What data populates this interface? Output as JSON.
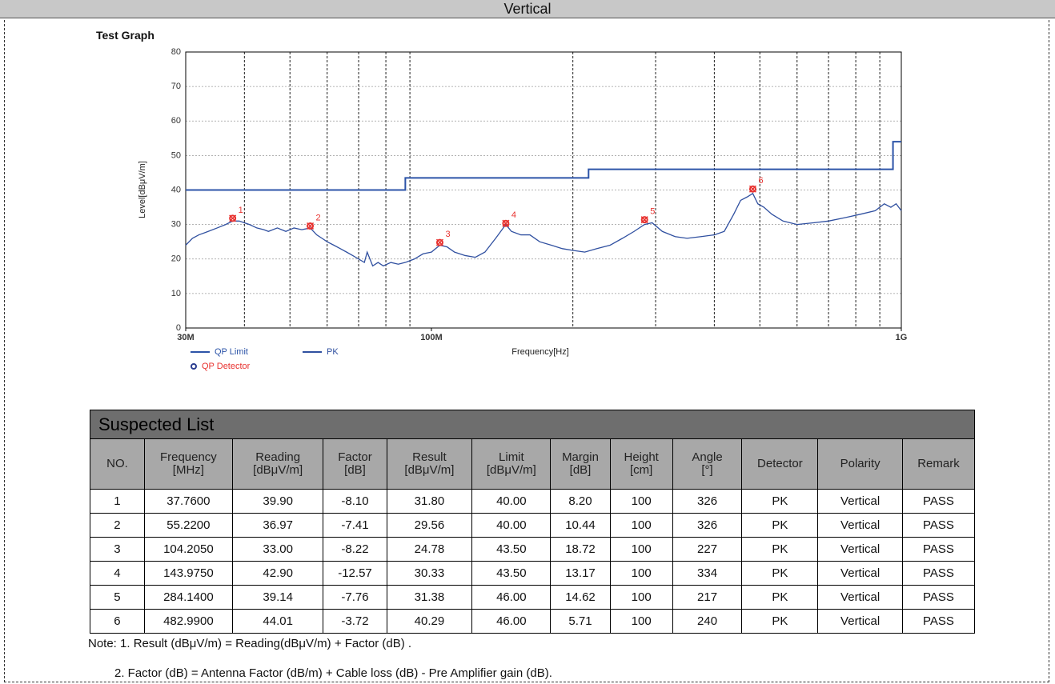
{
  "header": {
    "title": "Vertical"
  },
  "section_title": "Test Graph",
  "chart_data": {
    "type": "line",
    "xlabel": "Frequency[Hz]",
    "ylabel": "Level[dBμV/m]",
    "xscale": "log",
    "xlim": [
      30000000,
      1000000000
    ],
    "ylim": [
      0,
      80
    ],
    "xticks": [
      {
        "value": 30000000,
        "label": "30M"
      },
      {
        "value": 100000000,
        "label": "100M"
      },
      {
        "value": 1000000000,
        "label": "1G"
      }
    ],
    "x_minor_ticks": [
      40000000,
      50000000,
      60000000,
      70000000,
      80000000,
      90000000,
      200000000,
      300000000,
      400000000,
      500000000,
      600000000,
      700000000,
      800000000,
      900000000
    ],
    "yticks": [
      0,
      10,
      20,
      30,
      40,
      50,
      60,
      70,
      80
    ],
    "grid": true,
    "series": [
      {
        "name": "QP Limit",
        "color": "#2c54a8",
        "x": [
          30000000,
          88000000,
          88000000,
          216000000,
          216000000,
          960000000,
          960000000,
          1000000000
        ],
        "values": [
          40,
          40,
          43.5,
          43.5,
          46,
          46,
          54,
          54
        ]
      },
      {
        "name": "PK",
        "color": "#3050a0",
        "x": [
          30000000,
          31000000,
          32000000,
          33500000,
          35000000,
          36500000,
          37760000,
          39000000,
          40000000,
          41000000,
          42500000,
          44000000,
          45000000,
          47000000,
          49000000,
          51000000,
          53000000,
          55220000,
          57000000,
          58500000,
          60000000,
          62000000,
          64000000,
          66000000,
          68000000,
          70000000,
          72000000,
          73000000,
          75000000,
          77000000,
          79000000,
          82000000,
          85000000,
          88000000,
          92000000,
          96000000,
          100000000,
          104200000,
          108000000,
          112000000,
          118000000,
          124000000,
          130000000,
          137000000,
          143975000,
          148000000,
          155000000,
          162000000,
          170000000,
          180000000,
          190000000,
          200000000,
          212000000,
          225000000,
          240000000,
          255000000,
          270000000,
          284140000,
          295000000,
          310000000,
          330000000,
          350000000,
          375000000,
          400000000,
          420000000,
          440000000,
          455000000,
          470000000,
          482990000,
          495000000,
          510000000,
          530000000,
          560000000,
          600000000,
          650000000,
          700000000,
          760000000,
          820000000,
          880000000,
          920000000,
          950000000,
          975000000,
          1000000000
        ],
        "values": [
          24,
          26,
          27,
          28,
          29,
          30,
          31,
          31,
          30.5,
          30,
          29,
          28.5,
          28,
          29,
          28,
          29,
          28.5,
          29,
          27,
          26,
          25,
          24,
          23,
          22,
          21,
          20,
          19,
          22,
          18,
          19,
          18,
          19,
          18.5,
          19,
          20,
          21.5,
          22,
          24,
          23.5,
          22,
          21,
          20.5,
          22,
          26,
          30,
          28,
          27,
          27,
          25,
          24,
          23,
          22.5,
          22,
          23,
          24,
          26,
          28,
          30,
          30.5,
          28,
          26.5,
          26,
          26.5,
          27,
          28,
          33,
          37,
          38,
          39,
          36,
          35,
          33,
          31,
          30,
          30.5,
          31,
          32,
          33,
          34,
          36,
          35,
          36,
          34
        ]
      },
      {
        "name": "QP Detector",
        "color": "#e8322f",
        "x": [
          37760000,
          55220000,
          104205000,
          143975000,
          284140000,
          482990000
        ],
        "values": [
          31.8,
          29.56,
          24.78,
          30.33,
          31.38,
          40.29
        ],
        "value_labels": [
          "1",
          "2",
          "3",
          "4",
          "5",
          "6"
        ]
      }
    ]
  },
  "table": {
    "title": "Suspected List",
    "columns": [
      [
        "NO."
      ],
      [
        "Frequency",
        "[MHz]"
      ],
      [
        "Reading",
        "[dBμV/m]"
      ],
      [
        "Factor",
        "[dB]"
      ],
      [
        "Result",
        "[dBμV/m]"
      ],
      [
        "Limit",
        "[dBμV/m]"
      ],
      [
        "Margin",
        "[dB]"
      ],
      [
        "Height",
        "[cm]"
      ],
      [
        "Angle",
        "[°]"
      ],
      [
        "Detector"
      ],
      [
        "Polarity"
      ],
      [
        "Remark"
      ]
    ],
    "rows": [
      [
        "1",
        "37.7600",
        "39.90",
        "-8.10",
        "31.80",
        "40.00",
        "8.20",
        "100",
        "326",
        "PK",
        "Vertical",
        "PASS"
      ],
      [
        "2",
        "55.2200",
        "36.97",
        "-7.41",
        "29.56",
        "40.00",
        "10.44",
        "100",
        "326",
        "PK",
        "Vertical",
        "PASS"
      ],
      [
        "3",
        "104.2050",
        "33.00",
        "-8.22",
        "24.78",
        "43.50",
        "18.72",
        "100",
        "227",
        "PK",
        "Vertical",
        "PASS"
      ],
      [
        "4",
        "143.9750",
        "42.90",
        "-12.57",
        "30.33",
        "43.50",
        "13.17",
        "100",
        "334",
        "PK",
        "Vertical",
        "PASS"
      ],
      [
        "5",
        "284.1400",
        "39.14",
        "-7.76",
        "31.38",
        "46.00",
        "14.62",
        "100",
        "217",
        "PK",
        "Vertical",
        "PASS"
      ],
      [
        "6",
        "482.9900",
        "44.01",
        "-3.72",
        "40.29",
        "46.00",
        "5.71",
        "100",
        "240",
        "PK",
        "Vertical",
        "PASS"
      ]
    ]
  },
  "notes": [
    "Note: 1. Result (dBμV/m) = Reading(dBμV/m) + Factor (dB) .",
    "2. Factor (dB) = Antenna Factor (dB/m) + Cable loss (dB) - Pre Amplifier gain (dB)."
  ]
}
